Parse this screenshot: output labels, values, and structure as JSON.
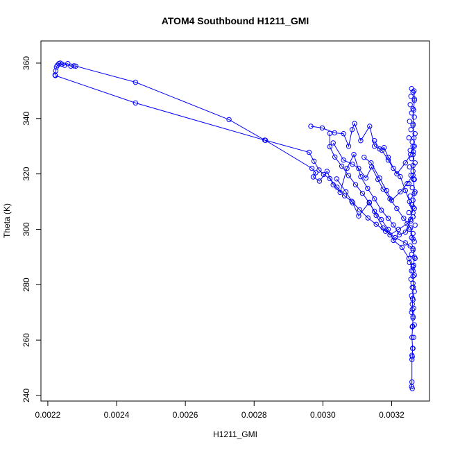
{
  "chart_data": {
    "type": "scatter",
    "title": "ATOM4 Southbound H1211_GMI",
    "xlabel": "H1211_GMI",
    "ylabel": "Theta (K)",
    "xlim": [
      0.00218,
      0.00331
    ],
    "ylim": [
      238,
      368
    ],
    "x_ticks": [
      0.0022,
      0.0024,
      0.0026,
      0.0028,
      0.003,
      0.0032
    ],
    "x_tick_labels": [
      "0.0022",
      "0.0024",
      "0.0026",
      "0.0028",
      "0.0030",
      "0.0032"
    ],
    "y_ticks": [
      240,
      260,
      280,
      300,
      320,
      340,
      360
    ],
    "y_tick_labels": [
      "240",
      "260",
      "280",
      "300",
      "320",
      "340",
      "360"
    ],
    "grid": false,
    "series": [
      {
        "color": "#0000ff",
        "style": "points-and-lines",
        "points": [
          [
            0.002221,
            355.7
          ],
          [
            0.002223,
            357.2
          ],
          [
            0.002225,
            358.6
          ],
          [
            0.002228,
            359.2
          ],
          [
            0.002232,
            359.8
          ],
          [
            0.002236,
            360.0
          ],
          [
            0.002241,
            359.6
          ],
          [
            0.002249,
            359.2
          ],
          [
            0.002258,
            359.8
          ],
          [
            0.002267,
            358.9
          ],
          [
            0.002276,
            359.0
          ],
          [
            0.002281,
            358.9
          ],
          [
            0.002455,
            353.1
          ],
          [
            0.002727,
            339.6
          ],
          [
            0.002831,
            332.2
          ],
          [
            0.00296,
            327.8
          ],
          [
            0.002974,
            324.6
          ],
          [
            0.002989,
            321.4
          ],
          [
            0.003002,
            319.8
          ],
          [
            0.00302,
            318.3
          ],
          [
            0.003041,
            315.2
          ],
          [
            0.003063,
            312.1
          ],
          [
            0.003084,
            310.1
          ],
          [
            0.003107,
            307.0
          ],
          [
            0.003131,
            304.1
          ],
          [
            0.003155,
            301.8
          ],
          [
            0.003182,
            299.3
          ],
          [
            0.00321,
            297.0
          ],
          [
            0.00324,
            295.1
          ],
          [
            0.003262,
            293.0
          ],
          [
            0.003266,
            290.0
          ],
          [
            0.003264,
            287.0
          ],
          [
            0.003262,
            283.0
          ],
          [
            0.003263,
            279.0
          ],
          [
            0.003261,
            275.0
          ],
          [
            0.00326,
            271.0
          ],
          [
            0.003262,
            268.0
          ],
          [
            0.003261,
            265.0
          ],
          [
            0.003259,
            261.0
          ],
          [
            0.003261,
            257.0
          ],
          [
            0.00326,
            254.0
          ],
          [
            0.003259,
            253.0
          ],
          [
            0.003259,
            244.9
          ],
          [
            0.003258,
            243.2
          ],
          [
            0.00326,
            242.5
          ]
        ]
      },
      {
        "color": "#0000ff",
        "style": "points-and-lines",
        "points": [
          [
            0.002222,
            355.5
          ],
          [
            0.002455,
            345.6
          ],
          [
            0.002833,
            332.1
          ],
          [
            0.002968,
            322.0
          ],
          [
            0.002979,
            320.4
          ],
          [
            0.002972,
            318.9
          ],
          [
            0.00299,
            317.4
          ],
          [
            0.003012,
            320.9
          ],
          [
            0.00303,
            316.1
          ],
          [
            0.00305,
            313.3
          ],
          [
            0.00307,
            322.0
          ],
          [
            0.00309,
            327.0
          ],
          [
            0.00311,
            319.0
          ],
          [
            0.00313,
            314.8
          ],
          [
            0.00315,
            311.0
          ],
          [
            0.00317,
            306.9
          ],
          [
            0.00319,
            304.0
          ],
          [
            0.003205,
            301.6
          ],
          [
            0.003222,
            298.0
          ],
          [
            0.00324,
            299.0
          ],
          [
            0.003255,
            303.5
          ],
          [
            0.003262,
            308.0
          ],
          [
            0.003266,
            313.0
          ],
          [
            0.003264,
            318.0
          ],
          [
            0.003262,
            323.0
          ],
          [
            0.003263,
            328.0
          ],
          [
            0.003265,
            333.0
          ],
          [
            0.003262,
            338.0
          ],
          [
            0.003264,
            343.0
          ],
          [
            0.003266,
            347.0
          ],
          [
            0.003265,
            350.0
          ]
        ]
      },
      {
        "color": "#0000ff",
        "style": "points-and-lines",
        "points": [
          [
            0.002965,
            337.2
          ],
          [
            0.002998,
            336.6
          ],
          [
            0.003034,
            334.8
          ],
          [
            0.00306,
            334.5
          ],
          [
            0.003075,
            330.0
          ],
          [
            0.003085,
            336.0
          ],
          [
            0.003092,
            338.2
          ],
          [
            0.00311,
            332.0
          ],
          [
            0.003136,
            337.2
          ],
          [
            0.00315,
            330.0
          ],
          [
            0.003172,
            328.5
          ],
          [
            0.00319,
            325.0
          ],
          [
            0.003215,
            320.0
          ],
          [
            0.00324,
            324.0
          ],
          [
            0.003255,
            327.0
          ],
          [
            0.003262,
            330.0
          ]
        ]
      },
      {
        "color": "#0000ff",
        "style": "points-and-lines",
        "points": [
          [
            0.00302,
            334.6
          ],
          [
            0.00302,
            329.8
          ],
          [
            0.003035,
            326.1
          ],
          [
            0.003055,
            322.8
          ],
          [
            0.003075,
            319.4
          ],
          [
            0.003095,
            316.1
          ],
          [
            0.003115,
            313.0
          ],
          [
            0.003135,
            309.5
          ],
          [
            0.00315,
            306.5
          ],
          [
            0.00317,
            303.5
          ],
          [
            0.00319,
            300.0
          ],
          [
            0.003205,
            296.0
          ],
          [
            0.00323,
            293.5
          ],
          [
            0.00325,
            289.5
          ],
          [
            0.003262,
            285.0
          ]
        ]
      },
      {
        "color": "#0000ff",
        "style": "points-and-lines",
        "points": [
          [
            0.00303,
            331.2
          ],
          [
            0.00306,
            325.0
          ],
          [
            0.003086,
            323.5
          ],
          [
            0.003104,
            322.0
          ],
          [
            0.003125,
            318.5
          ],
          [
            0.003142,
            322.5
          ],
          [
            0.00316,
            318.0
          ],
          [
            0.003175,
            314.5
          ],
          [
            0.003195,
            311.0
          ],
          [
            0.003215,
            307.5
          ],
          [
            0.003235,
            304.0
          ],
          [
            0.003255,
            300.5
          ],
          [
            0.003262,
            296.5
          ]
        ]
      },
      {
        "color": "#0000ff",
        "style": "points-and-lines",
        "points": [
          [
            0.00304,
            318.2
          ],
          [
            0.003067,
            313.5
          ],
          [
            0.003087,
            309.5
          ],
          [
            0.003104,
            304.8
          ],
          [
            0.003135,
            309.8
          ],
          [
            0.003155,
            305.0
          ],
          [
            0.003175,
            300.5
          ],
          [
            0.003195,
            298.0
          ],
          [
            0.00322,
            300.0
          ],
          [
            0.003245,
            302.0
          ],
          [
            0.003262,
            304.5
          ]
        ]
      },
      {
        "color": "#0000ff",
        "style": "points-and-lines",
        "points": [
          [
            0.00312,
            326.0
          ],
          [
            0.00314,
            324.0
          ],
          [
            0.003165,
            318.5
          ],
          [
            0.003185,
            314.0
          ],
          [
            0.0032,
            310.5
          ],
          [
            0.003225,
            313.5
          ],
          [
            0.003245,
            316.5
          ],
          [
            0.003262,
            319.5
          ]
        ]
      },
      {
        "color": "#0000ff",
        "style": "points-and-lines",
        "points": [
          [
            0.00315,
            332.0
          ],
          [
            0.003165,
            329.0
          ],
          [
            0.003178,
            329.5
          ],
          [
            0.00319,
            326.0
          ],
          [
            0.003205,
            322.0
          ],
          [
            0.003225,
            319.0
          ],
          [
            0.00324,
            314.0
          ],
          [
            0.003252,
            310.0
          ],
          [
            0.003262,
            306.0
          ]
        ]
      },
      {
        "color": "#0000ff",
        "style": "points",
        "points": [
          [
            0.003258,
            350.8
          ],
          [
            0.003262,
            349.5
          ],
          [
            0.003256,
            348.0
          ],
          [
            0.003266,
            346.5
          ],
          [
            0.003254,
            345.0
          ],
          [
            0.003262,
            343.5
          ],
          [
            0.003258,
            342.0
          ],
          [
            0.003266,
            340.5
          ],
          [
            0.003252,
            339.0
          ],
          [
            0.003262,
            337.5
          ],
          [
            0.003256,
            336.0
          ],
          [
            0.003268,
            334.5
          ],
          [
            0.00325,
            333.0
          ],
          [
            0.00326,
            331.5
          ],
          [
            0.003266,
            330.0
          ],
          [
            0.003254,
            328.5
          ],
          [
            0.003262,
            327.0
          ],
          [
            0.003258,
            325.5
          ],
          [
            0.003268,
            324.0
          ],
          [
            0.003252,
            322.5
          ],
          [
            0.003262,
            321.0
          ],
          [
            0.003256,
            319.5
          ],
          [
            0.003266,
            318.0
          ],
          [
            0.00325,
            316.5
          ],
          [
            0.00326,
            315.0
          ],
          [
            0.003268,
            313.5
          ],
          [
            0.003254,
            312.0
          ],
          [
            0.003262,
            310.5
          ],
          [
            0.003258,
            309.0
          ],
          [
            0.003266,
            307.5
          ],
          [
            0.00325,
            306.0
          ],
          [
            0.003262,
            304.5
          ],
          [
            0.003256,
            303.0
          ],
          [
            0.003268,
            301.5
          ],
          [
            0.003252,
            300.0
          ],
          [
            0.003262,
            298.5
          ],
          [
            0.003258,
            297.0
          ],
          [
            0.003266,
            295.5
          ],
          [
            0.003254,
            294.0
          ],
          [
            0.003262,
            292.5
          ],
          [
            0.003258,
            291.0
          ],
          [
            0.003268,
            289.5
          ],
          [
            0.003252,
            288.0
          ],
          [
            0.003262,
            286.5
          ],
          [
            0.003258,
            285.0
          ],
          [
            0.003266,
            283.5
          ],
          [
            0.003256,
            282.0
          ],
          [
            0.003262,
            280.5
          ],
          [
            0.00326,
            279.0
          ],
          [
            0.003266,
            277.5
          ],
          [
            0.003258,
            276.0
          ],
          [
            0.003262,
            274.5
          ],
          [
            0.00326,
            273.0
          ],
          [
            0.003264,
            271.5
          ],
          [
            0.003258,
            270.0
          ],
          [
            0.003262,
            268.5
          ],
          [
            0.003266,
            265.5
          ],
          [
            0.00326,
            264.8
          ],
          [
            0.003264,
            261.0
          ],
          [
            0.003262,
            257.0
          ],
          [
            0.003259,
            254.5
          ]
        ]
      }
    ]
  }
}
